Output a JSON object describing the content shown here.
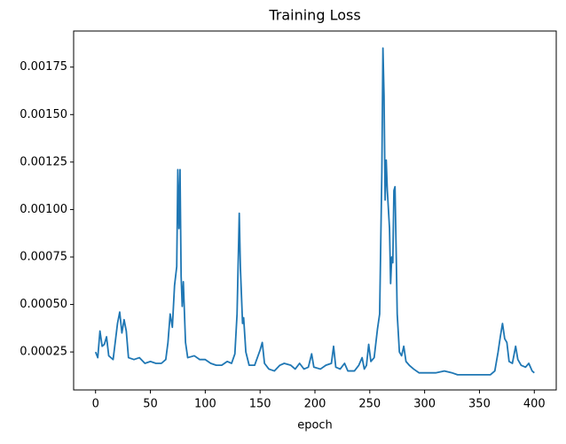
{
  "chart_data": {
    "type": "line",
    "title": "Training Loss",
    "xlabel": "epoch",
    "color": "#1f77b4",
    "x": [
      0,
      2,
      4,
      6,
      8,
      10,
      12,
      16,
      20,
      22,
      24,
      26,
      28,
      30,
      35,
      40,
      45,
      50,
      55,
      60,
      64,
      66,
      68,
      70,
      72,
      74,
      75,
      76,
      77,
      78,
      79,
      80,
      82,
      84,
      90,
      95,
      100,
      105,
      110,
      115,
      120,
      124,
      127,
      129,
      131,
      132,
      134,
      135,
      137,
      140,
      145,
      150,
      152,
      154,
      158,
      163,
      168,
      172,
      178,
      182,
      186,
      190,
      194,
      197,
      199,
      205,
      210,
      215,
      217,
      219,
      223,
      227,
      230,
      236,
      240,
      243,
      245,
      247,
      249,
      251,
      254,
      257,
      259,
      261,
      262,
      263,
      264,
      265,
      266,
      267,
      268,
      269,
      270,
      271,
      272,
      273,
      274,
      275,
      277,
      279,
      281,
      283,
      286,
      290,
      295,
      300,
      310,
      318,
      325,
      330,
      340,
      350,
      360,
      364,
      367,
      369,
      371,
      373,
      375,
      377,
      380,
      383,
      385,
      388,
      392,
      395,
      398,
      400
    ],
    "values": [
      0.00025,
      0.00022,
      0.00036,
      0.00028,
      0.00029,
      0.00033,
      0.00023,
      0.00021,
      0.0004,
      0.00046,
      0.00035,
      0.00042,
      0.00036,
      0.00022,
      0.00021,
      0.00022,
      0.00019,
      0.0002,
      0.00019,
      0.00019,
      0.00021,
      0.0003,
      0.00045,
      0.00038,
      0.0006,
      0.0007,
      0.00121,
      0.0009,
      0.00121,
      0.00065,
      0.00049,
      0.00062,
      0.0003,
      0.00022,
      0.00023,
      0.00021,
      0.00021,
      0.00019,
      0.00018,
      0.00018,
      0.0002,
      0.00019,
      0.00024,
      0.00045,
      0.00098,
      0.0007,
      0.0004,
      0.00043,
      0.00025,
      0.00018,
      0.00018,
      0.00026,
      0.0003,
      0.00019,
      0.00016,
      0.00015,
      0.00018,
      0.00019,
      0.00018,
      0.00016,
      0.00019,
      0.00016,
      0.00017,
      0.00024,
      0.00017,
      0.00016,
      0.00018,
      0.00019,
      0.00028,
      0.00017,
      0.00016,
      0.00019,
      0.00015,
      0.00015,
      0.00018,
      0.00022,
      0.00016,
      0.00018,
      0.00029,
      0.0002,
      0.00022,
      0.00037,
      0.00045,
      0.0012,
      0.00185,
      0.0016,
      0.00105,
      0.00126,
      0.0011,
      0.001,
      0.0009,
      0.00061,
      0.00075,
      0.00072,
      0.0011,
      0.00112,
      0.0008,
      0.00045,
      0.00025,
      0.00023,
      0.00028,
      0.0002,
      0.00018,
      0.00016,
      0.00014,
      0.00014,
      0.00014,
      0.00015,
      0.00014,
      0.00013,
      0.00013,
      0.00013,
      0.00013,
      0.00015,
      0.00025,
      0.00033,
      0.0004,
      0.00032,
      0.0003,
      0.0002,
      0.00019,
      0.00028,
      0.00021,
      0.00018,
      0.00017,
      0.00019,
      0.00015,
      0.00014
    ],
    "xlim": [
      -20,
      420
    ],
    "xticks": [
      0,
      50,
      100,
      150,
      200,
      250,
      300,
      350,
      400
    ],
    "ylim": [
      5e-05,
      0.00194
    ],
    "yticks": [
      0.00025,
      {
        "value": 0.0005,
        "label": "0.00050"
      },
      0.00075,
      {
        "value": 0.001,
        "label": "0.00100"
      },
      0.00125,
      {
        "value": 0.0015,
        "label": "0.00150"
      },
      0.00175
    ]
  }
}
